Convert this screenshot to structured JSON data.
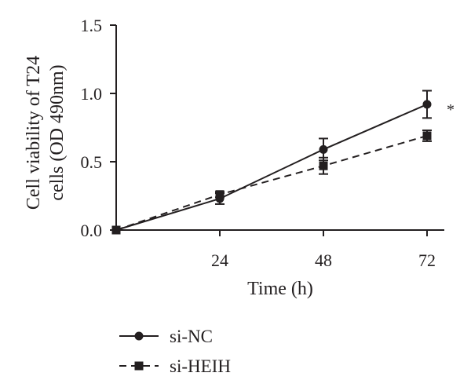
{
  "chart_data": {
    "type": "line",
    "title": "",
    "xlabel": "Time (h)",
    "ylabel_lines": [
      "Cell viability of T24",
      "cells (OD 490nm)"
    ],
    "x": [
      0,
      24,
      48,
      72
    ],
    "x_tick_labels": [
      "24",
      "48",
      "72"
    ],
    "y_tick_labels": [
      "0.0",
      "0.5",
      "1.0",
      "1.5"
    ],
    "xlim": [
      0,
      76
    ],
    "ylim": [
      0,
      1.5
    ],
    "grid": false,
    "legend_position": "bottom-left",
    "series": [
      {
        "name": "si-NC",
        "marker": "circle",
        "line_style": "solid",
        "values": [
          0.0,
          0.23,
          0.59,
          0.92
        ],
        "errors": [
          0.0,
          0.04,
          0.08,
          0.1
        ]
      },
      {
        "name": "si-HEIH",
        "marker": "square",
        "line_style": "dashed",
        "values": [
          0.0,
          0.26,
          0.47,
          0.69
        ],
        "errors": [
          0.0,
          0.02,
          0.06,
          0.04
        ]
      }
    ],
    "annotations": [
      {
        "text": "*",
        "x": 72,
        "y": 0.89
      }
    ],
    "colors": {
      "ink": "#231f20",
      "background": "#ffffff"
    }
  }
}
